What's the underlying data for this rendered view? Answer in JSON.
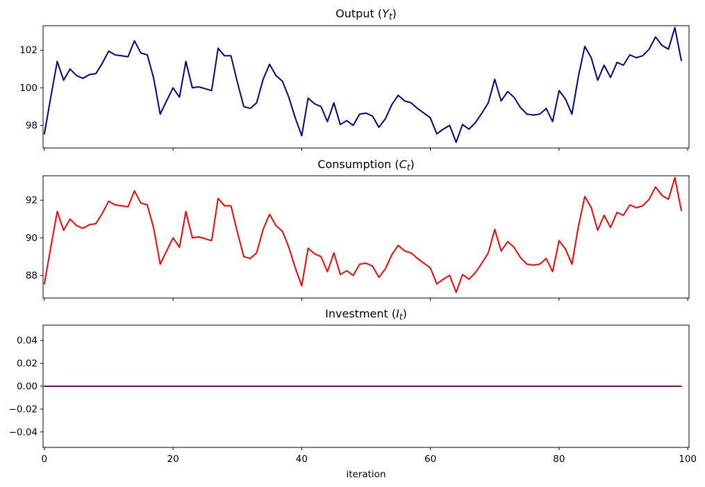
{
  "xlabel": "iteration",
  "chart_data": [
    {
      "id": "output",
      "type": "line",
      "title": {
        "prefix": "Output (",
        "variable": "Y",
        "subscript": "t",
        "suffix": ")"
      },
      "xlabel": "",
      "x_range": [
        0,
        99
      ],
      "xlim": [
        -0.2,
        100.2
      ],
      "ylim": [
        96.8,
        103.3
      ],
      "grid": false,
      "legend": "none",
      "show_xtick_labels": false,
      "xticks": {
        "values": [
          0,
          20,
          40,
          60,
          80,
          100
        ],
        "labels": [
          "0",
          "20",
          "40",
          "60",
          "80",
          "100"
        ]
      },
      "yticks": {
        "values": [
          98,
          100,
          102
        ],
        "labels": [
          "98",
          "100",
          "102"
        ]
      },
      "series": [
        {
          "name": "Output",
          "color": "#00008b",
          "values": [
            97.55,
            99.5,
            101.4,
            100.4,
            101.0,
            100.65,
            100.5,
            100.7,
            100.75,
            101.3,
            101.95,
            101.75,
            101.7,
            101.65,
            102.5,
            101.85,
            101.75,
            100.5,
            98.6,
            99.3,
            100.0,
            99.5,
            101.4,
            100.0,
            100.05,
            99.95,
            99.85,
            102.1,
            101.7,
            101.7,
            100.3,
            99.0,
            98.9,
            99.2,
            100.45,
            101.25,
            100.65,
            100.35,
            99.5,
            98.4,
            97.45,
            99.45,
            99.15,
            99.0,
            98.2,
            99.2,
            98.05,
            98.25,
            98.0,
            98.6,
            98.65,
            98.5,
            97.9,
            98.35,
            99.1,
            99.6,
            99.3,
            99.2,
            98.9,
            98.65,
            98.4,
            97.55,
            97.8,
            98.0,
            97.1,
            98.05,
            97.8,
            98.15,
            98.65,
            99.2,
            100.45,
            99.3,
            99.8,
            99.5,
            98.95,
            98.6,
            98.55,
            98.6,
            98.9,
            98.2,
            99.85,
            99.4,
            98.6,
            100.6,
            102.2,
            101.6,
            100.4,
            101.2,
            100.55,
            101.35,
            101.2,
            101.75,
            101.6,
            101.7,
            102.05,
            102.7,
            102.25,
            102.05,
            103.2,
            101.45
          ]
        }
      ]
    },
    {
      "id": "consumption",
      "type": "line",
      "title": {
        "prefix": "Consumption (",
        "variable": "C",
        "subscript": "t",
        "suffix": ")"
      },
      "xlabel": "",
      "x_range": [
        0,
        99
      ],
      "xlim": [
        -0.2,
        100.2
      ],
      "ylim": [
        86.8,
        93.3
      ],
      "grid": false,
      "legend": "none",
      "show_xtick_labels": false,
      "xticks": {
        "values": [
          0,
          20,
          40,
          60,
          80,
          100
        ],
        "labels": [
          "0",
          "20",
          "40",
          "60",
          "80",
          "100"
        ]
      },
      "yticks": {
        "values": [
          88,
          90,
          92
        ],
        "labels": [
          "88",
          "90",
          "92"
        ]
      },
      "series": [
        {
          "name": "Consumption",
          "color": "#ff0000",
          "values": [
            87.55,
            89.5,
            91.4,
            90.4,
            91.0,
            90.65,
            90.5,
            90.7,
            90.75,
            91.3,
            91.95,
            91.75,
            91.7,
            91.65,
            92.5,
            91.85,
            91.75,
            90.5,
            88.6,
            89.3,
            90.0,
            89.5,
            91.4,
            90.0,
            90.05,
            89.95,
            89.85,
            92.1,
            91.7,
            91.7,
            90.3,
            89.0,
            88.9,
            89.2,
            90.45,
            91.25,
            90.65,
            90.35,
            89.5,
            88.4,
            87.45,
            89.45,
            89.15,
            89.0,
            88.2,
            89.2,
            88.05,
            88.25,
            88.0,
            88.6,
            88.65,
            88.5,
            87.9,
            88.35,
            89.1,
            89.6,
            89.3,
            89.2,
            88.9,
            88.65,
            88.4,
            87.55,
            87.8,
            88.0,
            87.1,
            88.05,
            87.8,
            88.15,
            88.65,
            89.2,
            90.45,
            89.3,
            89.8,
            89.5,
            88.95,
            88.6,
            88.55,
            88.6,
            88.9,
            88.2,
            89.85,
            89.4,
            88.6,
            90.6,
            92.2,
            91.6,
            90.4,
            91.2,
            90.55,
            91.35,
            91.2,
            91.75,
            91.6,
            91.7,
            92.05,
            92.7,
            92.25,
            92.05,
            93.2,
            91.45
          ]
        }
      ]
    },
    {
      "id": "investment",
      "type": "line",
      "title": {
        "prefix": "Investment (",
        "variable": "I",
        "subscript": "t",
        "suffix": ")"
      },
      "xlabel": "iteration",
      "x_range": [
        0,
        99
      ],
      "xlim": [
        -0.2,
        100.2
      ],
      "ylim": [
        -0.0535,
        0.0535
      ],
      "grid": false,
      "legend": "none",
      "show_xtick_labels": true,
      "xticks": {
        "values": [
          0,
          20,
          40,
          60,
          80,
          100
        ],
        "labels": [
          "0",
          "20",
          "40",
          "60",
          "80",
          "100"
        ]
      },
      "yticks": {
        "values": [
          0.04,
          0.02,
          0.0,
          -0.02,
          -0.04
        ],
        "labels": [
          "0.04",
          "0.02",
          "0.00",
          "−0.02",
          "−0.04"
        ]
      },
      "series": [
        {
          "name": "Investment",
          "color": "#800080",
          "values": [
            0,
            0,
            0,
            0,
            0,
            0,
            0,
            0,
            0,
            0,
            0,
            0,
            0,
            0,
            0,
            0,
            0,
            0,
            0,
            0,
            0,
            0,
            0,
            0,
            0,
            0,
            0,
            0,
            0,
            0,
            0,
            0,
            0,
            0,
            0,
            0,
            0,
            0,
            0,
            0,
            0,
            0,
            0,
            0,
            0,
            0,
            0,
            0,
            0,
            0,
            0,
            0,
            0,
            0,
            0,
            0,
            0,
            0,
            0,
            0,
            0,
            0,
            0,
            0,
            0,
            0,
            0,
            0,
            0,
            0,
            0,
            0,
            0,
            0,
            0,
            0,
            0,
            0,
            0,
            0,
            0,
            0,
            0,
            0,
            0,
            0,
            0,
            0,
            0,
            0,
            0,
            0,
            0,
            0,
            0,
            0,
            0,
            0,
            0,
            0
          ]
        }
      ]
    }
  ]
}
